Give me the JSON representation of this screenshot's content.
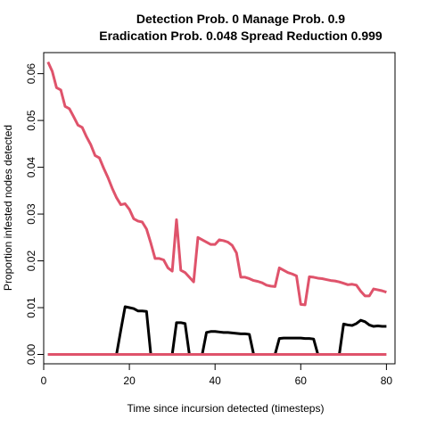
{
  "chart_data": {
    "type": "line",
    "title_line1": "Detection Prob. 0 Manage Prob. 0.9",
    "title_line2": "Eradication Prob. 0.048 Spread Reduction 0.999",
    "xlabel": "Time since incursion detected (timesteps)",
    "ylabel": "Proportion infested nodes detected",
    "xlim": [
      0,
      82
    ],
    "ylim": [
      -0.002,
      0.0645
    ],
    "xticks": [
      0,
      20,
      40,
      60,
      80
    ],
    "yticks": [
      0.0,
      0.01,
      0.02,
      0.03,
      0.04,
      0.05,
      0.06
    ],
    "ytick_labels": [
      "0.00",
      "0.01",
      "0.02",
      "0.03",
      "0.04",
      "0.05",
      "0.06"
    ],
    "grid": false,
    "series": [
      {
        "color": "#df536b",
        "x": [
          1,
          2,
          3,
          4,
          5,
          6,
          7,
          8,
          9,
          10,
          11,
          12,
          13,
          14,
          15,
          16,
          17,
          18,
          19,
          20,
          21,
          22,
          23,
          24,
          25,
          26,
          27,
          28,
          29,
          30,
          31,
          32,
          33,
          34,
          35,
          36,
          37,
          38,
          39,
          40,
          41,
          42,
          43,
          44,
          45,
          46,
          47,
          48,
          49,
          50,
          51,
          52,
          53,
          54,
          55,
          56,
          57,
          58,
          59,
          60,
          61,
          62,
          63,
          64,
          65,
          66,
          67,
          68,
          69,
          70,
          71,
          72,
          73,
          74,
          75,
          76,
          77,
          78,
          79,
          80
        ],
        "y": [
          0.0625,
          0.0605,
          0.057,
          0.0565,
          0.053,
          0.0525,
          0.0508,
          0.049,
          0.0485,
          0.0465,
          0.0448,
          0.0425,
          0.042,
          0.0398,
          0.0378,
          0.0355,
          0.0335,
          0.032,
          0.0322,
          0.031,
          0.029,
          0.0285,
          0.0283,
          0.0268,
          0.0238,
          0.0205,
          0.0205,
          0.0202,
          0.0185,
          0.0178,
          0.0288,
          0.018,
          0.0175,
          0.0165,
          0.0155,
          0.025,
          0.0245,
          0.024,
          0.0235,
          0.0235,
          0.0245,
          0.0243,
          0.024,
          0.0233,
          0.0217,
          0.0165,
          0.0165,
          0.0162,
          0.0158,
          0.0156,
          0.0153,
          0.0148,
          0.0146,
          0.0145,
          0.0185,
          0.018,
          0.0175,
          0.0172,
          0.0168,
          0.0107,
          0.0106,
          0.0166,
          0.0165,
          0.0163,
          0.0162,
          0.016,
          0.0158,
          0.0157,
          0.0155,
          0.0152,
          0.0149,
          0.015,
          0.0148,
          0.0135,
          0.0125,
          0.0125,
          0.014,
          0.0138,
          0.0136,
          0.0133
        ]
      },
      {
        "color": "#000000",
        "x": [
          1,
          16,
          17,
          18,
          19,
          20,
          21,
          22,
          23,
          24,
          25,
          30,
          31,
          32,
          33,
          34,
          37,
          38,
          39,
          40,
          41,
          42,
          43,
          44,
          45,
          46,
          47,
          48,
          49,
          54,
          55,
          56,
          57,
          58,
          59,
          60,
          61,
          62,
          63,
          64,
          69,
          70,
          71,
          72,
          73,
          74,
          75,
          76,
          77,
          78,
          79,
          80
        ],
        "y": [
          0,
          0,
          0,
          0.0052,
          0.0102,
          0.01,
          0.0098,
          0.0093,
          0.0093,
          0.0092,
          0,
          0,
          0.0068,
          0.0068,
          0.0066,
          0,
          0,
          0.0047,
          0.0049,
          0.0049,
          0.0048,
          0.0047,
          0.0047,
          0.0046,
          0.0045,
          0.0044,
          0.0044,
          0.0043,
          0,
          0,
          0.0034,
          0.0035,
          0.0035,
          0.0035,
          0.0035,
          0.0035,
          0.0034,
          0.0034,
          0.0033,
          0,
          0,
          0.0065,
          0.0063,
          0.0062,
          0.0066,
          0.0073,
          0.007,
          0.0063,
          0.006,
          0.0061,
          0.006,
          0.006
        ]
      },
      {
        "color": "#df536b",
        "x": [
          1,
          80
        ],
        "y": [
          0,
          0
        ]
      }
    ]
  }
}
